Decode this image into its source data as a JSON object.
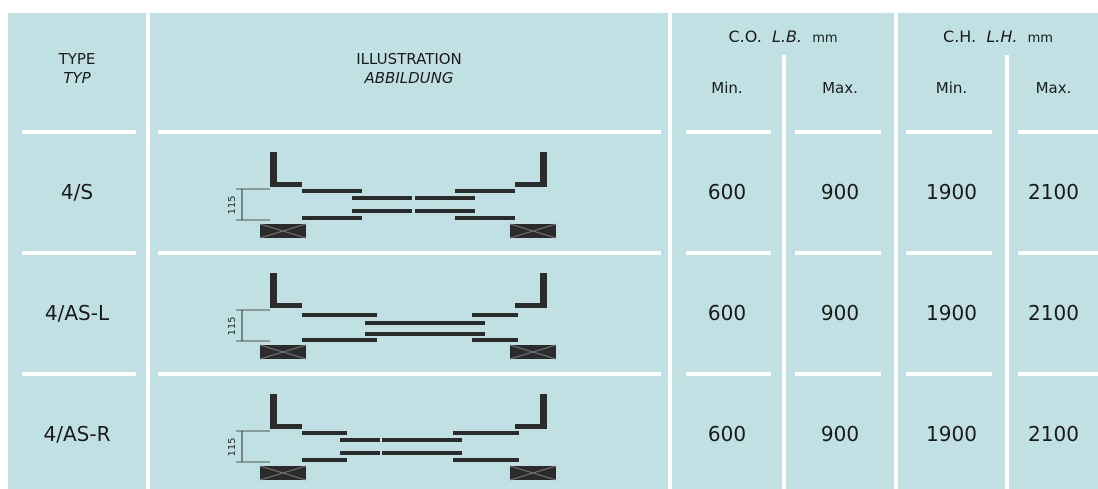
{
  "header": {
    "type_label": "TYPE",
    "type_label_de": "TYP",
    "illustration_label": "ILLUSTRATION",
    "illustration_label_de": "ABBILDUNG",
    "co": {
      "abbr": "C.O.",
      "alt": "L.B.",
      "unit": "mm"
    },
    "ch": {
      "abbr": "C.H.",
      "alt": "L.H.",
      "unit": "mm"
    },
    "min_label": "Min.",
    "max_label": "Max."
  },
  "rows": [
    {
      "type": "4/S",
      "dim": "115",
      "co_min": "600",
      "co_max": "900",
      "ch_min": "1900",
      "ch_max": "2100"
    },
    {
      "type": "4/AS-L",
      "dim": "115",
      "co_min": "600",
      "co_max": "900",
      "ch_min": "1900",
      "ch_max": "2100"
    },
    {
      "type": "4/AS-R",
      "dim": "115",
      "co_min": "600",
      "co_max": "900",
      "ch_min": "1900",
      "ch_max": "2100"
    }
  ],
  "colors": {
    "panel": "#c0e0e4",
    "drawing": "#2b2b2b",
    "divider": "#ffffff"
  }
}
